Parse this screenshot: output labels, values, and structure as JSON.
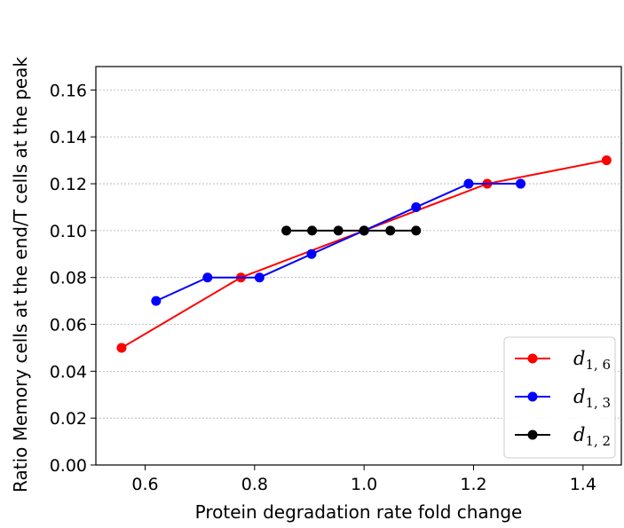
{
  "chart_data": {
    "type": "line",
    "xlabel": "Protein degradation rate fold change",
    "ylabel": "Ratio Memory cells at the end/T cells at the peak",
    "xlim": [
      0.51,
      1.47
    ],
    "ylim": [
      0.0,
      0.17
    ],
    "xticks": [
      0.6,
      0.8,
      1.0,
      1.2,
      1.4
    ],
    "yticks": [
      0.0,
      0.02,
      0.04,
      0.06,
      0.08,
      0.1,
      0.12,
      0.14,
      0.16
    ],
    "xtick_labels": [
      "0.6",
      "0.8",
      "1.0",
      "1.2",
      "1.4"
    ],
    "ytick_labels": [
      "0.00",
      "0.02",
      "0.04",
      "0.06",
      "0.08",
      "0.10",
      "0.12",
      "0.14",
      "0.16"
    ],
    "grid": "horizontal",
    "legend_position": "lower-right",
    "series": [
      {
        "name_main": "d",
        "name_sub": "1, 6",
        "color": "#ff0000",
        "x": [
          0.557,
          0.775,
          1.0,
          1.225,
          1.443
        ],
        "y": [
          0.05,
          0.08,
          0.1,
          0.12,
          0.13
        ]
      },
      {
        "name_main": "d",
        "name_sub": "1, 3",
        "color": "#0000ff",
        "x": [
          0.62,
          0.714,
          0.809,
          0.904,
          1.0,
          1.095,
          1.191,
          1.286
        ],
        "y": [
          0.07,
          0.08,
          0.08,
          0.09,
          0.1,
          0.11,
          0.12,
          0.12
        ]
      },
      {
        "name_main": "d",
        "name_sub": "1, 2",
        "color": "#000000",
        "x": [
          0.858,
          0.905,
          0.953,
          1.0,
          1.048,
          1.095
        ],
        "y": [
          0.1,
          0.1,
          0.1,
          0.1,
          0.1,
          0.1
        ]
      }
    ]
  }
}
